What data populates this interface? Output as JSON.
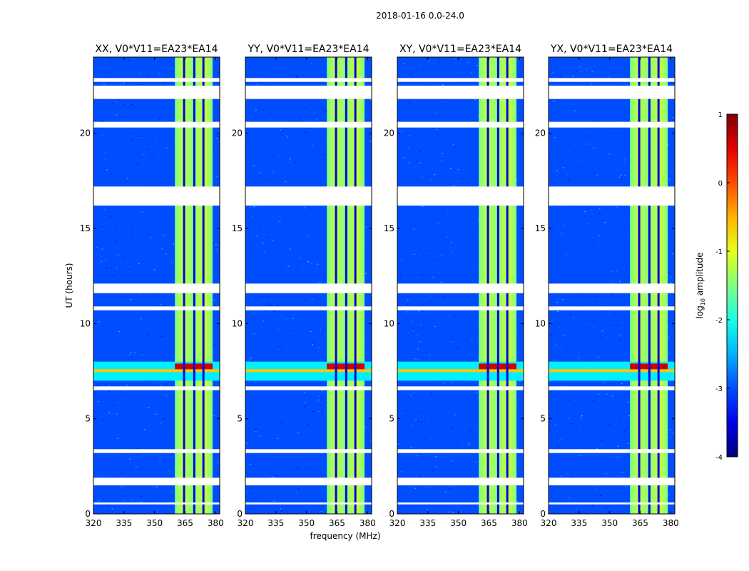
{
  "chart_data": {
    "type": "heatmap",
    "suptitle": "2018-01-16 0.0-24.0",
    "xlabel": "frequency (MHz)",
    "ylabel": "UT (hours)",
    "xlim": [
      320,
      382
    ],
    "ylim": [
      0,
      24
    ],
    "xticks": [
      320,
      335,
      350,
      365,
      380
    ],
    "yticks": [
      0,
      5,
      10,
      15,
      20
    ],
    "panels": [
      {
        "title": "XX, V0*V11=EA23*EA14"
      },
      {
        "title": "YY, V0*V11=EA23*EA14"
      },
      {
        "title": "XY, V0*V11=EA23*EA14"
      },
      {
        "title": "YX, V0*V11=EA23*EA14"
      }
    ],
    "colorbar": {
      "label_main": "log",
      "label_sub": "10",
      "label_tail": " amplitude",
      "range": [
        -4,
        1
      ],
      "ticks": [
        1,
        0,
        -1,
        -2,
        -3,
        -4
      ],
      "colormap": "jet",
      "background_log_amplitude": -3.0,
      "band_log_amplitude": -1.3
    },
    "signal_band_mhz": [
      360,
      378.5
    ],
    "channel_gaps_mhz": [
      364.5,
      369.5,
      374
    ],
    "flagged_ut_hours": [
      [
        0.5,
        0.6
      ],
      [
        1.5,
        1.9
      ],
      [
        3.2,
        3.4
      ],
      [
        6.5,
        6.7
      ],
      [
        10.7,
        10.9
      ],
      [
        11.6,
        12.1
      ],
      [
        16.2,
        17.2
      ],
      [
        20.3,
        20.6
      ],
      [
        21.8,
        22.5
      ],
      [
        22.7,
        22.9
      ]
    ],
    "rfi_ut_hours": [
      7.0,
      8.0
    ]
  }
}
